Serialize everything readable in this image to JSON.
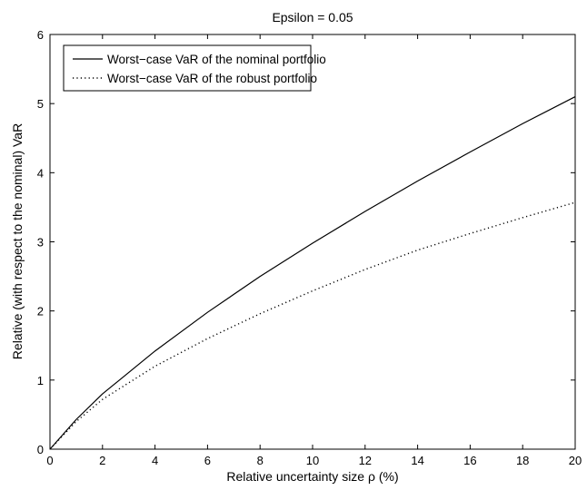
{
  "chart_data": {
    "type": "line",
    "title": "Epsilon = 0.05",
    "xlabel": "Relative uncertainty size ρ (%)",
    "ylabel": "Relative (with respect to the nominal) VaR",
    "xlim": [
      0,
      20
    ],
    "ylim": [
      0,
      6
    ],
    "xticks": [
      0,
      2,
      4,
      6,
      8,
      10,
      12,
      14,
      16,
      18,
      20
    ],
    "yticks": [
      0,
      1,
      2,
      3,
      4,
      5,
      6
    ],
    "grid": false,
    "legend_position": "top-left",
    "series": [
      {
        "name": "Worst−case VaR of the nominal portfolio",
        "style": "solid",
        "color": "#000000",
        "x": [
          0,
          1,
          2,
          4,
          6,
          8,
          10,
          12,
          14,
          16,
          18,
          20
        ],
        "y": [
          0,
          0.43,
          0.8,
          1.42,
          1.98,
          2.5,
          2.98,
          3.44,
          3.88,
          4.3,
          4.71,
          5.1
        ]
      },
      {
        "name": "Worst−case VaR of the robust portfolio",
        "style": "dotted",
        "color": "#000000",
        "x": [
          0,
          1,
          2,
          4,
          6,
          8,
          10,
          12,
          14,
          16,
          18,
          20
        ],
        "y": [
          0,
          0.4,
          0.72,
          1.2,
          1.6,
          1.96,
          2.29,
          2.6,
          2.88,
          3.12,
          3.35,
          3.57
        ]
      }
    ]
  }
}
